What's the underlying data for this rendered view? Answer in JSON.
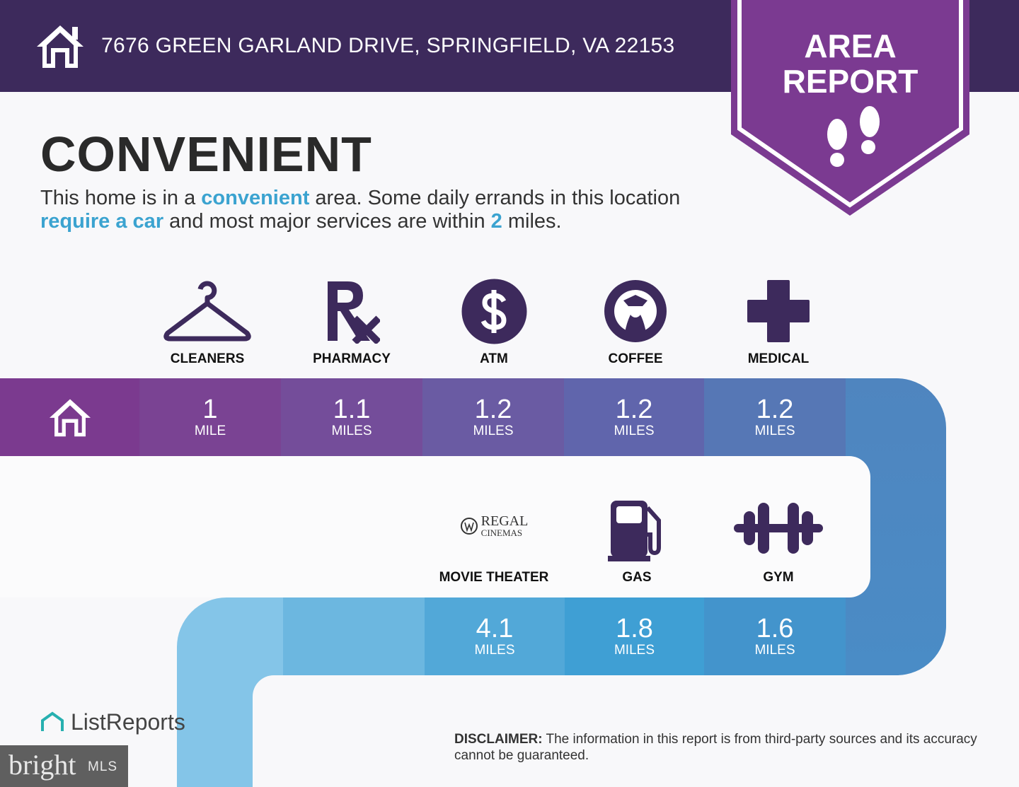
{
  "header": {
    "address": "7676 GREEN GARLAND DRIVE, SPRINGFIELD, VA 22153",
    "icon": "home-icon"
  },
  "badge": {
    "line1": "AREA",
    "line2": "REPORT",
    "icon": "footprints-icon"
  },
  "title": "CONVENIENT",
  "description": {
    "p1": "This home is in a ",
    "h1": "convenient",
    "p2": " area. Some daily errands in this location ",
    "h2": "require a car",
    "p3": " and most major services are within ",
    "h3": "2",
    "p4": " miles."
  },
  "top_row": [
    {
      "label": "CLEANERS",
      "value": "1",
      "unit": "MILE",
      "icon": "hanger-icon"
    },
    {
      "label": "PHARMACY",
      "value": "1.1",
      "unit": "MILES",
      "icon": "rx-icon"
    },
    {
      "label": "ATM",
      "value": "1.2",
      "unit": "MILES",
      "icon": "dollar-icon"
    },
    {
      "label": "COFFEE",
      "value": "1.2",
      "unit": "MILES",
      "icon": "starbucks-logo"
    },
    {
      "label": "MEDICAL",
      "value": "1.2",
      "unit": "MILES",
      "icon": "medical-cross-icon"
    }
  ],
  "bottom_row": [
    {
      "label": "MOVIE THEATER",
      "value": "4.1",
      "unit": "MILES",
      "icon": "regal-cinemas-logo",
      "logo_text1": "REGAL",
      "logo_text2": "CINEMAS"
    },
    {
      "label": "GAS",
      "value": "1.8",
      "unit": "MILES",
      "icon": "gas-pump-icon"
    },
    {
      "label": "GYM",
      "value": "1.6",
      "unit": "MILES",
      "icon": "dumbbell-icon"
    }
  ],
  "disclaimer": {
    "label": "DISCLAIMER:",
    "text": " The information in this report is from third-party sources and its accuracy cannot be guaranteed."
  },
  "footer": {
    "listreports": "ListReports",
    "bright": "bright",
    "mls": "MLS"
  },
  "colors": {
    "header": "#3d2a5c",
    "badge": "#7b3a91",
    "icon": "#3d2a5c",
    "highlight": "#3ba3d0"
  }
}
